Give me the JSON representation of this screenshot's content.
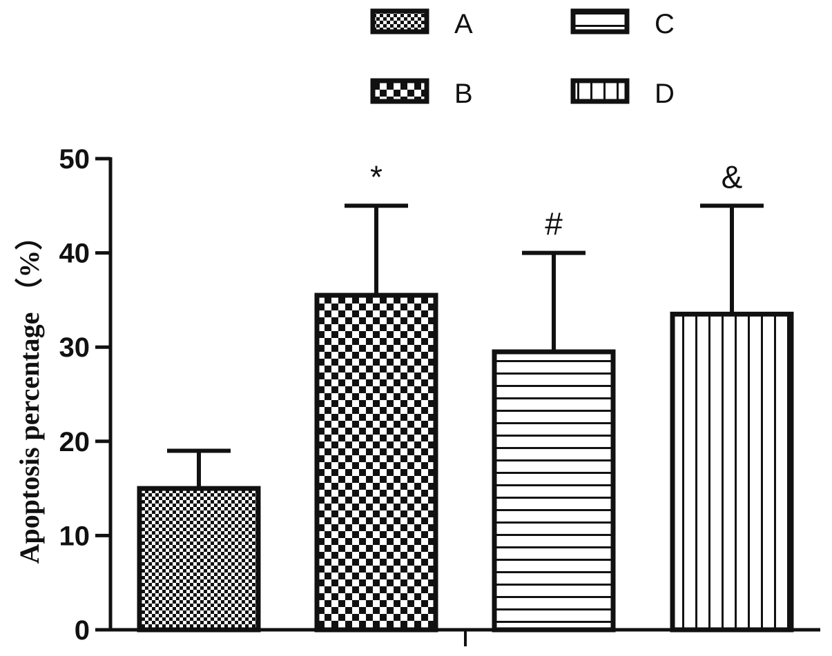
{
  "chart_data": {
    "type": "bar",
    "title": "",
    "xlabel": "",
    "ylabel": "Apoptosis percentage （%）",
    "ylim": [
      0,
      50
    ],
    "yticks": [
      0,
      10,
      20,
      30,
      40,
      50
    ],
    "grid": false,
    "legend_position": "top",
    "categories": [
      "A",
      "B",
      "C",
      "D"
    ],
    "values": [
      15,
      35.5,
      29.5,
      33.5
    ],
    "error_upper": [
      19,
      45,
      40,
      45
    ],
    "annotations": [
      "",
      "*",
      "#",
      "&"
    ],
    "patterns": [
      "fine-checker",
      "coarse-checker",
      "horizontal-lines",
      "vertical-lines"
    ],
    "colors": {
      "ink": "#111111",
      "background": "#ffffff"
    }
  }
}
